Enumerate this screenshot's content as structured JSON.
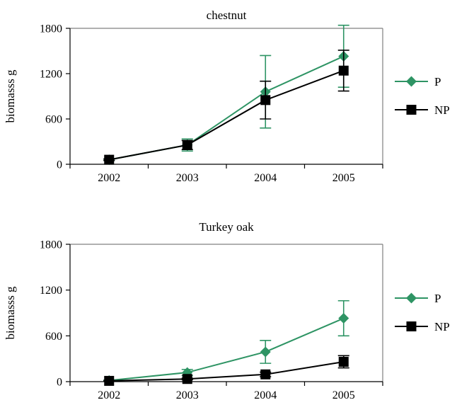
{
  "colors": {
    "P": "#2e9464",
    "NP": "#000000",
    "frame": "#808080"
  },
  "chart_data": [
    {
      "type": "line",
      "title": "chestnut",
      "xlabel": "",
      "ylabel": "biomasss g",
      "categories": [
        "2002",
        "2003",
        "2004",
        "2005"
      ],
      "ylim": [
        0,
        1800
      ],
      "yticks": [
        "0",
        "600",
        "1200",
        "1800"
      ],
      "grid": false,
      "legend": "right",
      "series": [
        {
          "name": "P",
          "marker": "diamond",
          "values": [
            60,
            255,
            960,
            1430
          ],
          "err": [
            10,
            80,
            480,
            410
          ]
        },
        {
          "name": "NP",
          "marker": "square",
          "values": [
            60,
            255,
            850,
            1240
          ],
          "err": [
            10,
            60,
            250,
            270
          ]
        }
      ]
    },
    {
      "type": "line",
      "title": "Turkey oak",
      "xlabel": "",
      "ylabel": "biomasss g",
      "categories": [
        "2002",
        "2003",
        "2004",
        "2005"
      ],
      "ylim": [
        0,
        1800
      ],
      "yticks": [
        "0",
        "600",
        "1200",
        "1800"
      ],
      "grid": false,
      "legend": "right",
      "series": [
        {
          "name": "P",
          "marker": "diamond",
          "values": [
            15,
            120,
            390,
            830
          ],
          "err": [
            5,
            40,
            150,
            230
          ]
        },
        {
          "name": "NP",
          "marker": "square",
          "values": [
            10,
            35,
            95,
            260
          ],
          "err": [
            5,
            10,
            30,
            80
          ]
        }
      ]
    }
  ]
}
